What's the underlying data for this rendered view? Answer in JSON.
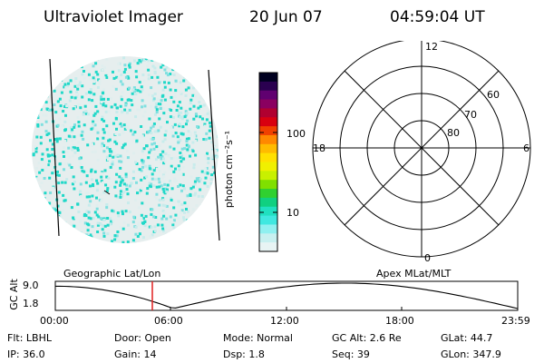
{
  "header": {
    "instrument": "Ultraviolet Imager",
    "date": "20 Jun 07",
    "time": "04:59:04 UT"
  },
  "colorbar": {
    "unit_label": "photon cm⁻²s⁻¹",
    "ticks": [
      "100",
      "10"
    ],
    "colors": [
      "#000020",
      "#2a0050",
      "#600070",
      "#8a0060",
      "#b00030",
      "#d80010",
      "#f04000",
      "#ff8800",
      "#ffbb00",
      "#ffe000",
      "#f0f000",
      "#c8f000",
      "#80e000",
      "#30d030",
      "#10d080",
      "#20e0c0",
      "#40e8e0",
      "#90f0f0",
      "#c8f0f0",
      "#e8f4f4"
    ]
  },
  "polar_plot": {
    "mlt_labels": {
      "top": "12",
      "left": "18",
      "right": "6",
      "bottom": "0"
    },
    "lat_labels": [
      "60",
      "70",
      "80"
    ]
  },
  "orbit_panel": {
    "left_title": "Geographic Lat/Lon",
    "right_title": "Apex MLat/MLT",
    "y_label": "GC Alt",
    "y_ticks": [
      "9.0",
      "1.8"
    ],
    "x_ticks": [
      "00:00",
      "06:00",
      "12:00",
      "18:00",
      "23:59"
    ],
    "marker_color": "#e02020"
  },
  "status": {
    "filter": "Flt: LBHL",
    "door": "Door: Open",
    "mode": "Mode: Normal",
    "gc_alt": "GC Alt: 2.6 Re",
    "glat": "GLat:  44.7",
    "ip": "IP: 36.0",
    "gain": "Gain: 14",
    "dsp": "Dsp:   1.8",
    "seq": "Seq: 39",
    "glon": "GLon: 347.9"
  },
  "image_colors": {
    "cyan": "#20d8c8",
    "light": "#c8ecec",
    "pale": "#e0eeee",
    "mid": "#80e0e0"
  }
}
